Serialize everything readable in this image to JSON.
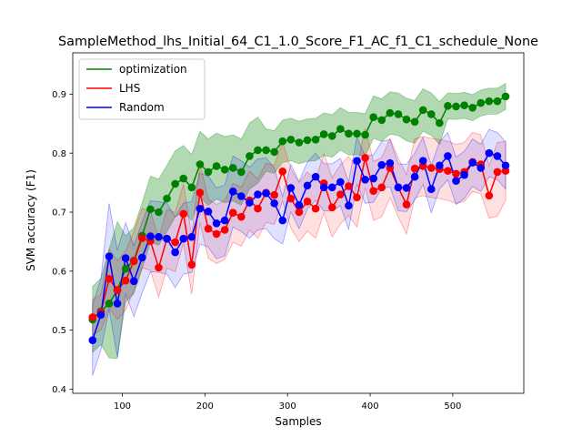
{
  "chart_data": {
    "type": "line",
    "title": "SampleMethod_lhs_Initial_64_C1_1.0_Score_F1_AC_f1_C1_schedule_None",
    "xlabel": "Samples",
    "ylabel": "SVM accuracy (F1)",
    "xlim": [
      40,
      586
    ],
    "ylim": [
      0.393,
      0.97
    ],
    "xticks": [
      100,
      200,
      300,
      400,
      500
    ],
    "yticks": [
      0.4,
      0.5,
      0.6,
      0.7,
      0.8,
      0.9
    ],
    "xtick_labels": [
      "100",
      "200",
      "300",
      "400",
      "500"
    ],
    "ytick_labels": [
      "0.4",
      "0.5",
      "0.6",
      "0.7",
      "0.8",
      "0.9"
    ],
    "legend_position": "top-left",
    "x": [
      64,
      74,
      84,
      94,
      104,
      114,
      124,
      134,
      144,
      154,
      164,
      174,
      184,
      194,
      204,
      214,
      224,
      234,
      244,
      254,
      264,
      274,
      284,
      294,
      304,
      314,
      324,
      334,
      344,
      354,
      364,
      374,
      384,
      394,
      404,
      414,
      424,
      434,
      444,
      454,
      464,
      474,
      484,
      494,
      504,
      514,
      524,
      534,
      544,
      554,
      564
    ],
    "series": [
      {
        "name": "optimization",
        "color": "#008000",
        "values": [
          0.518,
          0.532,
          0.545,
          0.568,
          0.604,
          0.618,
          0.66,
          0.705,
          0.7,
          0.723,
          0.748,
          0.757,
          0.742,
          0.781,
          0.768,
          0.778,
          0.772,
          0.775,
          0.768,
          0.795,
          0.805,
          0.805,
          0.802,
          0.82,
          0.823,
          0.818,
          0.822,
          0.823,
          0.832,
          0.829,
          0.841,
          0.833,
          0.833,
          0.831,
          0.861,
          0.856,
          0.868,
          0.866,
          0.857,
          0.853,
          0.873,
          0.866,
          0.851,
          0.88,
          0.879,
          0.881,
          0.877,
          0.885,
          0.888,
          0.888,
          0.896
        ],
        "lower": [
          0.462,
          0.476,
          0.453,
          0.452,
          0.548,
          0.562,
          0.604,
          0.649,
          0.644,
          0.667,
          0.692,
          0.701,
          0.686,
          0.725,
          0.712,
          0.722,
          0.716,
          0.719,
          0.712,
          0.739,
          0.749,
          0.769,
          0.766,
          0.784,
          0.787,
          0.782,
          0.786,
          0.787,
          0.796,
          0.793,
          0.805,
          0.797,
          0.797,
          0.795,
          0.825,
          0.82,
          0.832,
          0.83,
          0.821,
          0.817,
          0.837,
          0.83,
          0.815,
          0.858,
          0.857,
          0.859,
          0.855,
          0.863,
          0.866,
          0.866,
          0.874
        ],
        "upper": [
          0.574,
          0.588,
          0.637,
          0.684,
          0.66,
          0.674,
          0.716,
          0.761,
          0.756,
          0.779,
          0.804,
          0.813,
          0.798,
          0.837,
          0.824,
          0.834,
          0.828,
          0.831,
          0.824,
          0.851,
          0.861,
          0.841,
          0.838,
          0.856,
          0.859,
          0.854,
          0.858,
          0.859,
          0.868,
          0.865,
          0.877,
          0.869,
          0.869,
          0.867,
          0.897,
          0.892,
          0.904,
          0.902,
          0.893,
          0.889,
          0.909,
          0.902,
          0.887,
          0.902,
          0.901,
          0.903,
          0.899,
          0.907,
          0.91,
          0.91,
          0.918
        ]
      },
      {
        "name": "LHS",
        "color": "#ff0000",
        "values": [
          0.522,
          0.53,
          0.587,
          0.568,
          0.584,
          0.617,
          0.656,
          0.651,
          0.606,
          0.655,
          0.649,
          0.697,
          0.611,
          0.733,
          0.672,
          0.663,
          0.67,
          0.699,
          0.692,
          0.72,
          0.706,
          0.733,
          0.729,
          0.769,
          0.723,
          0.7,
          0.718,
          0.706,
          0.749,
          0.708,
          0.73,
          0.744,
          0.725,
          0.792,
          0.736,
          0.742,
          0.775,
          0.742,
          0.713,
          0.774,
          0.778,
          0.775,
          0.773,
          0.77,
          0.765,
          0.768,
          0.785,
          0.781,
          0.728,
          0.768,
          0.77
        ],
        "lower": [
          0.492,
          0.5,
          0.537,
          0.518,
          0.534,
          0.567,
          0.606,
          0.601,
          0.556,
          0.605,
          0.599,
          0.647,
          0.561,
          0.683,
          0.622,
          0.613,
          0.62,
          0.649,
          0.642,
          0.67,
          0.656,
          0.683,
          0.679,
          0.719,
          0.673,
          0.65,
          0.668,
          0.656,
          0.699,
          0.658,
          0.68,
          0.694,
          0.675,
          0.742,
          0.686,
          0.692,
          0.725,
          0.692,
          0.663,
          0.724,
          0.728,
          0.725,
          0.723,
          0.72,
          0.715,
          0.718,
          0.735,
          0.731,
          0.69,
          0.693,
          0.72
        ],
        "upper": [
          0.552,
          0.56,
          0.637,
          0.618,
          0.634,
          0.667,
          0.706,
          0.701,
          0.656,
          0.705,
          0.699,
          0.747,
          0.661,
          0.783,
          0.722,
          0.713,
          0.72,
          0.749,
          0.742,
          0.77,
          0.756,
          0.783,
          0.779,
          0.819,
          0.773,
          0.75,
          0.768,
          0.756,
          0.799,
          0.758,
          0.78,
          0.794,
          0.775,
          0.842,
          0.786,
          0.792,
          0.825,
          0.792,
          0.763,
          0.824,
          0.828,
          0.825,
          0.823,
          0.82,
          0.815,
          0.818,
          0.835,
          0.831,
          0.778,
          0.818,
          0.82
        ]
      },
      {
        "name": "Random",
        "color": "#0000ff",
        "values": [
          0.483,
          0.526,
          0.625,
          0.545,
          0.622,
          0.583,
          0.623,
          0.659,
          0.658,
          0.655,
          0.632,
          0.655,
          0.658,
          0.706,
          0.701,
          0.681,
          0.686,
          0.735,
          0.727,
          0.716,
          0.73,
          0.732,
          0.715,
          0.686,
          0.741,
          0.712,
          0.745,
          0.76,
          0.742,
          0.742,
          0.751,
          0.711,
          0.787,
          0.755,
          0.757,
          0.78,
          0.783,
          0.742,
          0.741,
          0.76,
          0.787,
          0.739,
          0.779,
          0.795,
          0.753,
          0.763,
          0.784,
          0.775,
          0.8,
          0.795,
          0.779
        ],
        "lower": [
          0.423,
          0.466,
          0.535,
          0.455,
          0.562,
          0.523,
          0.563,
          0.599,
          0.598,
          0.595,
          0.572,
          0.595,
          0.598,
          0.646,
          0.641,
          0.621,
          0.626,
          0.675,
          0.667,
          0.656,
          0.67,
          0.672,
          0.655,
          0.646,
          0.701,
          0.672,
          0.705,
          0.72,
          0.702,
          0.702,
          0.711,
          0.671,
          0.747,
          0.715,
          0.717,
          0.74,
          0.743,
          0.702,
          0.701,
          0.72,
          0.747,
          0.699,
          0.739,
          0.755,
          0.713,
          0.723,
          0.744,
          0.735,
          0.76,
          0.755,
          0.739
        ],
        "upper": [
          0.543,
          0.586,
          0.715,
          0.635,
          0.682,
          0.643,
          0.683,
          0.719,
          0.718,
          0.715,
          0.692,
          0.715,
          0.718,
          0.766,
          0.761,
          0.741,
          0.746,
          0.795,
          0.787,
          0.776,
          0.79,
          0.792,
          0.775,
          0.726,
          0.781,
          0.752,
          0.785,
          0.8,
          0.782,
          0.782,
          0.791,
          0.751,
          0.827,
          0.795,
          0.797,
          0.82,
          0.823,
          0.782,
          0.781,
          0.8,
          0.827,
          0.779,
          0.819,
          0.835,
          0.793,
          0.803,
          0.824,
          0.815,
          0.84,
          0.835,
          0.819
        ]
      }
    ]
  }
}
